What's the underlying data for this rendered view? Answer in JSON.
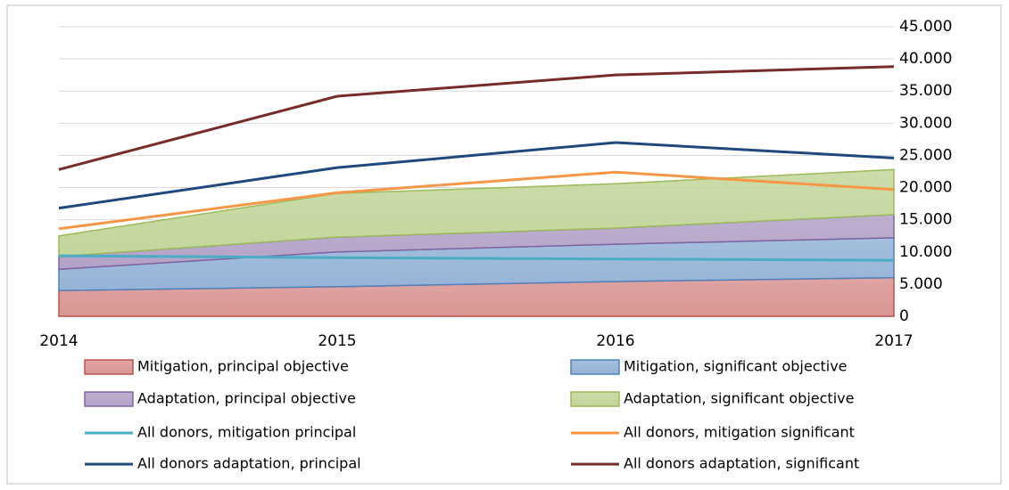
{
  "chart_data": {
    "type": "area",
    "categories": [
      "2014",
      "2015",
      "2016",
      "2017"
    ],
    "ylim": [
      0,
      45000
    ],
    "yticks": [
      0,
      {
        "value": 5000,
        "label": "5.000"
      },
      {
        "value": 10000,
        "label": "10.000"
      },
      {
        "value": 15000,
        "label": "15.000"
      },
      {
        "value": 20000,
        "label": "20.000"
      },
      {
        "value": 25000,
        "label": "25.000"
      },
      {
        "value": 30000,
        "label": "30.000"
      },
      {
        "value": 35000,
        "label": "35.000"
      },
      {
        "value": 40000,
        "label": "40.000"
      },
      {
        "value": 45000,
        "label": "45.000"
      }
    ],
    "grid": true,
    "series": [
      {
        "name": "Mitigation, principal objective",
        "mark": "area",
        "color": "#d99694",
        "edge": "#c0504d",
        "values": [
          4000,
          4600,
          5400,
          6000
        ]
      },
      {
        "name": "Mitigation, significant objective",
        "mark": "area",
        "color": "#95b3d7",
        "edge": "#4f81bd",
        "values": [
          3300,
          5400,
          5800,
          6200
        ]
      },
      {
        "name": "Adaptation, principal objective",
        "mark": "area",
        "color": "#b3a2c7",
        "edge": "#8064a2",
        "values": [
          2000,
          2300,
          2500,
          3600
        ]
      },
      {
        "name": "Adaptation, significant objective",
        "mark": "area",
        "color": "#c3d69b",
        "edge": "#9bbb59",
        "values": [
          3200,
          6800,
          6900,
          7000
        ]
      },
      {
        "name": "All donors, mitigation principal",
        "mark": "line",
        "color": "#4bacc6",
        "values": [
          9400,
          9100,
          8900,
          8700
        ]
      },
      {
        "name": "All donors, mitigation significant",
        "mark": "line",
        "color": "#f79646",
        "values": [
          13600,
          19200,
          22400,
          19700
        ]
      },
      {
        "name": "All donors adaptation, principal",
        "mark": "line",
        "color": "#1f497d",
        "values": [
          16800,
          23100,
          27000,
          24600
        ]
      },
      {
        "name": "All donors adaptation, significant",
        "mark": "line",
        "color": "#772c2a",
        "values": [
          22800,
          34200,
          37500,
          38800
        ]
      }
    ]
  }
}
